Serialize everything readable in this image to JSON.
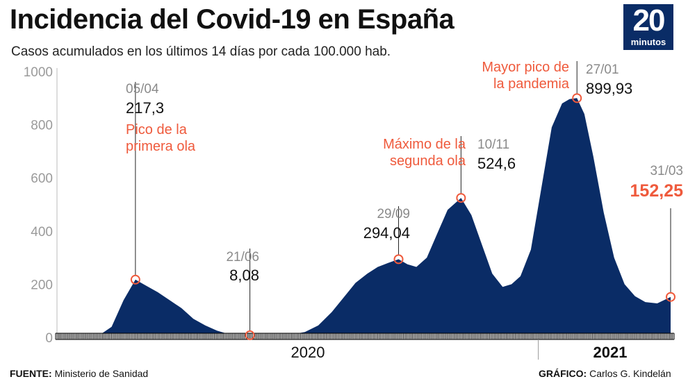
{
  "header": {
    "title": "Incidencia del Covid-19 en España",
    "subtitle": "Casos acumulados en los últimos 14 días por cada 100.000 hab.",
    "logo_number": "20",
    "logo_word": "minutos"
  },
  "footer": {
    "source_label": "FUENTE:",
    "source_value": "Ministerio de Sanidad",
    "credit_label": "GRÁFICO:",
    "credit_value": "Carlos G. Kindelán"
  },
  "colors": {
    "area": "#0a2c66",
    "highlight": "#ef5a3c",
    "muted": "#8a8a8a",
    "text": "#111111"
  },
  "chart_data": {
    "type": "area",
    "title": "Incidencia del Covid-19 en España",
    "subtitle": "Casos acumulados en los últimos 14 días por cada 100.000 hab.",
    "xlabel": "",
    "ylabel": "",
    "ylim": [
      0,
      1000
    ],
    "yticks": [
      0,
      200,
      400,
      600,
      800,
      1000
    ],
    "year_labels": [
      "2020",
      "2021"
    ],
    "grid": false,
    "x": [
      "2020-03-01",
      "2020-03-10",
      "2020-03-20",
      "2020-03-28",
      "2020-04-05",
      "2020-04-12",
      "2020-04-20",
      "2020-04-28",
      "2020-05-06",
      "2020-05-14",
      "2020-05-22",
      "2020-05-30",
      "2020-06-07",
      "2020-06-14",
      "2020-06-21",
      "2020-06-30",
      "2020-07-10",
      "2020-07-20",
      "2020-07-28",
      "2020-08-06",
      "2020-08-15",
      "2020-08-23",
      "2020-08-31",
      "2020-09-08",
      "2020-09-15",
      "2020-09-22",
      "2020-09-29",
      "2020-10-05",
      "2020-10-11",
      "2020-10-18",
      "2020-10-25",
      "2020-11-01",
      "2020-11-10",
      "2020-11-17",
      "2020-11-24",
      "2020-12-01",
      "2020-12-08",
      "2020-12-14",
      "2020-12-20",
      "2020-12-27",
      "2021-01-03",
      "2021-01-10",
      "2021-01-17",
      "2021-01-22",
      "2021-01-27",
      "2021-02-01",
      "2021-02-07",
      "2021-02-14",
      "2021-02-21",
      "2021-02-28",
      "2021-03-07",
      "2021-03-14",
      "2021-03-22",
      "2021-03-31"
    ],
    "values": [
      0,
      2,
      40,
      140,
      217.3,
      195,
      170,
      140,
      110,
      70,
      45,
      25,
      12,
      9,
      8.08,
      8,
      9,
      12,
      20,
      45,
      95,
      150,
      205,
      240,
      265,
      280,
      294.04,
      275,
      265,
      300,
      390,
      480,
      524.6,
      460,
      350,
      240,
      190,
      200,
      230,
      330,
      560,
      790,
      880,
      896,
      899.93,
      840,
      680,
      470,
      300,
      200,
      155,
      133,
      128,
      152.25
    ],
    "annotations": [
      {
        "date": "05/04",
        "value_label": "217,3",
        "value": 217.3,
        "note": [
          "Pico de la",
          "primera ola"
        ]
      },
      {
        "date": "21/06",
        "value_label": "8,08",
        "value": 8.08,
        "note": []
      },
      {
        "date": "29/09",
        "value_label": "294,04",
        "value": 294.04,
        "note": []
      },
      {
        "date": "10/11",
        "value_label": "524,6",
        "value": 524.6,
        "note": [
          "Máximo de la",
          "segunda ola"
        ]
      },
      {
        "date": "27/01",
        "value_label": "899,93",
        "value": 899.93,
        "note": [
          "Mayor pico de",
          "la pandemia"
        ]
      },
      {
        "date": "31/03",
        "value_label": "152,25",
        "value": 152.25,
        "note": []
      }
    ]
  }
}
